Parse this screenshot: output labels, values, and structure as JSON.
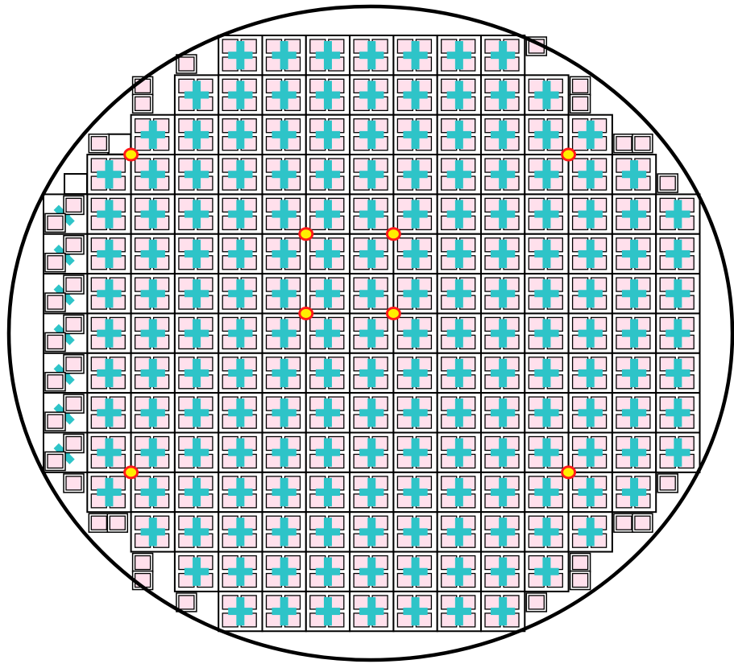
{
  "diagram": {
    "kind": "wafer-map",
    "colors": {
      "background": "#ffffff",
      "outline": "#000000",
      "pad_fill": "#ffe0ec",
      "cross": "#2ec4c8",
      "marker_ring": "#ff1a1a",
      "marker_core": "#ffee00"
    },
    "grid": {
      "columns": 15,
      "rows": 15,
      "column_extents_by_row": [
        [
          4,
          10
        ],
        [
          3,
          11
        ],
        [
          2,
          12
        ],
        [
          1,
          13
        ],
        [
          1,
          14
        ],
        [
          1,
          14
        ],
        [
          1,
          14
        ],
        [
          1,
          14
        ],
        [
          1,
          14
        ],
        [
          1,
          14
        ],
        [
          1,
          14
        ],
        [
          1,
          13
        ],
        [
          2,
          12
        ],
        [
          3,
          11
        ],
        [
          4,
          10
        ]
      ],
      "partial_cells": [
        {
          "row": 0,
          "col": 3,
          "pads": [
            2
          ]
        },
        {
          "row": 0,
          "col": 11,
          "pads": [
            0
          ]
        },
        {
          "row": 1,
          "col": 2,
          "pads": [
            0,
            2
          ]
        },
        {
          "row": 1,
          "col": 12,
          "pads": [
            0,
            2
          ]
        },
        {
          "row": 2,
          "col": 1,
          "pads": [
            2
          ],
          "outline": "half"
        },
        {
          "row": 2,
          "col": 13,
          "pads": [
            2,
            3
          ]
        },
        {
          "row": 3,
          "col": 0,
          "pads": [],
          "outline": "half"
        },
        {
          "row": 3,
          "col": 14,
          "pads": [
            2
          ]
        },
        {
          "row": 4,
          "col": 0,
          "pads": [
            1,
            2
          ],
          "cross": "diag"
        },
        {
          "row": 5,
          "col": 0,
          "pads": [
            1,
            2
          ],
          "cross": "diag"
        },
        {
          "row": 6,
          "col": 0,
          "pads": [
            1,
            2
          ],
          "cross": "diag"
        },
        {
          "row": 7,
          "col": 0,
          "pads": [
            1,
            2
          ],
          "cross": "diag"
        },
        {
          "row": 8,
          "col": 0,
          "pads": [
            1,
            2
          ],
          "cross": "diag"
        },
        {
          "row": 9,
          "col": 0,
          "pads": [
            1,
            2
          ],
          "cross": "diag"
        },
        {
          "row": 10,
          "col": 0,
          "pads": [
            1,
            2
          ],
          "cross": "diag"
        },
        {
          "row": 11,
          "col": 0,
          "pads": [
            1
          ]
        },
        {
          "row": 11,
          "col": 14,
          "pads": [
            0
          ]
        },
        {
          "row": 12,
          "col": 1,
          "pads": [
            0,
            1
          ]
        },
        {
          "row": 12,
          "col": 13,
          "pads": [
            0,
            1
          ]
        },
        {
          "row": 13,
          "col": 2,
          "pads": [
            0,
            2
          ]
        },
        {
          "row": 13,
          "col": 12,
          "pads": [
            0,
            2
          ]
        },
        {
          "row": 14,
          "col": 3,
          "pads": [
            0
          ]
        },
        {
          "row": 14,
          "col": 11,
          "pads": [
            0
          ]
        }
      ]
    },
    "markers": [
      {
        "row": 3,
        "col": 2
      },
      {
        "row": 3,
        "col": 12
      },
      {
        "row": 5,
        "col": 6
      },
      {
        "row": 5,
        "col": 8
      },
      {
        "row": 7,
        "col": 6
      },
      {
        "row": 7,
        "col": 8
      },
      {
        "row": 11,
        "col": 2
      },
      {
        "row": 11,
        "col": 12
      }
    ]
  }
}
